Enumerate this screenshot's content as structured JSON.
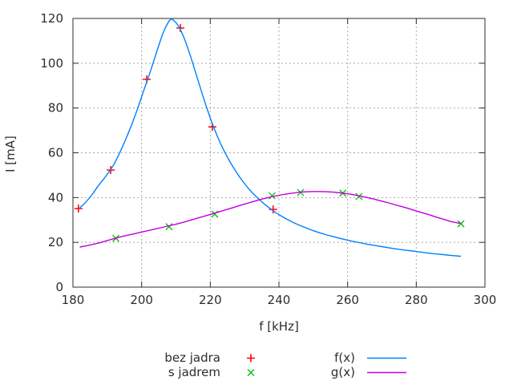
{
  "colors": {
    "background": "#ffffff",
    "axis": "#2d2d2d",
    "text": "#2d2d2d",
    "grid": "#a8a8a8"
  },
  "chart_data": {
    "type": "line",
    "title": "",
    "xlabel": "f [kHz]",
    "ylabel": "I [mA]",
    "xlim": [
      180,
      300
    ],
    "ylim": [
      0,
      120
    ],
    "xticks": [
      180,
      200,
      220,
      240,
      260,
      280,
      300
    ],
    "yticks": [
      0,
      20,
      40,
      60,
      80,
      100,
      120
    ],
    "grid": true,
    "legend_position": "below-plot, two columns",
    "series": [
      {
        "name": "bez jadra",
        "kind": "points",
        "marker": "plus",
        "color": "#ff0000",
        "data": [
          [
            181.6,
            35.1
          ],
          [
            191.0,
            52.3
          ],
          [
            201.5,
            92.8
          ],
          [
            211.3,
            115.7
          ],
          [
            220.6,
            71.6
          ],
          [
            238.3,
            34.7
          ]
        ]
      },
      {
        "name": "s jadrem",
        "kind": "points",
        "marker": "times",
        "color": "#00c000",
        "data": [
          [
            192.5,
            21.8
          ],
          [
            208.0,
            27.0
          ],
          [
            221.3,
            32.6
          ],
          [
            238.0,
            40.8
          ],
          [
            246.3,
            42.3
          ],
          [
            258.6,
            42.0
          ],
          [
            263.3,
            40.5
          ],
          [
            293.0,
            28.3
          ]
        ]
      },
      {
        "name": "f(x)",
        "kind": "line",
        "color": "#0080ff",
        "data": [
          [
            182,
            35.5
          ],
          [
            183,
            36.8
          ],
          [
            184,
            38.4
          ],
          [
            185,
            40.2
          ],
          [
            186,
            42.2
          ],
          [
            187,
            44.5
          ],
          [
            188,
            46.5
          ],
          [
            189,
            48.4
          ],
          [
            190,
            50.4
          ],
          [
            191,
            52.5
          ],
          [
            192,
            55
          ],
          [
            193,
            58
          ],
          [
            194,
            61.3
          ],
          [
            195,
            64.7
          ],
          [
            196,
            68.3
          ],
          [
            197,
            72.1
          ],
          [
            198,
            76.2
          ],
          [
            199,
            80.5
          ],
          [
            200,
            85
          ],
          [
            201,
            89.4
          ],
          [
            202,
            93.8
          ],
          [
            203,
            98.4
          ],
          [
            204,
            103.2
          ],
          [
            205,
            108
          ],
          [
            206,
            112.5
          ],
          [
            207,
            116.2
          ],
          [
            208,
            118.9
          ],
          [
            208.7,
            119.8
          ],
          [
            209,
            119.6
          ],
          [
            210,
            118.2
          ],
          [
            211,
            115.9
          ],
          [
            212,
            112.7
          ],
          [
            213,
            108.8
          ],
          [
            214,
            104.3
          ],
          [
            215,
            99.5
          ],
          [
            216,
            94.5
          ],
          [
            217,
            89.5
          ],
          [
            218,
            84.6
          ],
          [
            219,
            79.9
          ],
          [
            220,
            75.5
          ],
          [
            221,
            71.4
          ],
          [
            222,
            67.6
          ],
          [
            223,
            64.1
          ],
          [
            224,
            60.9
          ],
          [
            225,
            58
          ],
          [
            226,
            55.3
          ],
          [
            227,
            52.8
          ],
          [
            228,
            50.4
          ],
          [
            229,
            48.2
          ],
          [
            230,
            46.2
          ],
          [
            231,
            44.3
          ],
          [
            232,
            42.6
          ],
          [
            233,
            41
          ],
          [
            234,
            39.5
          ],
          [
            235,
            38.1
          ],
          [
            236,
            36.8
          ],
          [
            237,
            35.6
          ],
          [
            238,
            34.5
          ],
          [
            239,
            33.4
          ],
          [
            240,
            32.4
          ],
          [
            241,
            31.5
          ],
          [
            242,
            30.6
          ],
          [
            243,
            29.8
          ],
          [
            244,
            29
          ],
          [
            245,
            28.3
          ],
          [
            246,
            27.6
          ],
          [
            247,
            27
          ],
          [
            248,
            26.4
          ],
          [
            249,
            25.8
          ],
          [
            250,
            25.2
          ],
          [
            252,
            24.2
          ],
          [
            254,
            23.3
          ],
          [
            256,
            22.5
          ],
          [
            258,
            21.7
          ],
          [
            260,
            21
          ],
          [
            262,
            20.3
          ],
          [
            264,
            19.7
          ],
          [
            266,
            19.1
          ],
          [
            268,
            18.6
          ],
          [
            270,
            18.1
          ],
          [
            272,
            17.6
          ],
          [
            274,
            17.1
          ],
          [
            276,
            16.7
          ],
          [
            278,
            16.3
          ],
          [
            280,
            15.9
          ],
          [
            282,
            15.5
          ],
          [
            284,
            15.1
          ],
          [
            286,
            14.8
          ],
          [
            288,
            14.5
          ],
          [
            290,
            14.2
          ],
          [
            293,
            13.8
          ]
        ]
      },
      {
        "name": "g(x)",
        "kind": "line",
        "color": "#c000df",
        "data": [
          [
            182,
            17.9
          ],
          [
            184,
            18.5
          ],
          [
            186,
            19.2
          ],
          [
            188,
            19.9
          ],
          [
            190,
            20.8
          ],
          [
            192,
            21.7
          ],
          [
            194,
            22.5
          ],
          [
            196,
            23.2
          ],
          [
            198,
            23.9
          ],
          [
            200,
            24.6
          ],
          [
            202,
            25.3
          ],
          [
            204,
            26
          ],
          [
            206,
            26.7
          ],
          [
            208,
            27.4
          ],
          [
            210,
            28.1
          ],
          [
            212,
            28.9
          ],
          [
            214,
            29.8
          ],
          [
            216,
            30.7
          ],
          [
            218,
            31.6
          ],
          [
            220,
            32.5
          ],
          [
            222,
            33.4
          ],
          [
            224,
            34.3
          ],
          [
            226,
            35.2
          ],
          [
            228,
            36.2
          ],
          [
            230,
            37.1
          ],
          [
            232,
            38
          ],
          [
            234,
            38.9
          ],
          [
            236,
            39.7
          ],
          [
            238,
            40.4
          ],
          [
            240,
            41
          ],
          [
            242,
            41.6
          ],
          [
            244,
            42
          ],
          [
            246,
            42.4
          ],
          [
            248,
            42.6
          ],
          [
            250,
            42.7
          ],
          [
            252,
            42.7
          ],
          [
            254,
            42.6
          ],
          [
            256,
            42.4
          ],
          [
            258,
            42.1
          ],
          [
            260,
            41.7
          ],
          [
            262,
            41.2
          ],
          [
            264,
            40.6
          ],
          [
            266,
            39.9
          ],
          [
            268,
            39.2
          ],
          [
            270,
            38.4
          ],
          [
            272,
            37.6
          ],
          [
            274,
            36.7
          ],
          [
            276,
            35.9
          ],
          [
            278,
            35
          ],
          [
            280,
            34
          ],
          [
            282,
            33.1
          ],
          [
            284,
            32.2
          ],
          [
            286,
            31.2
          ],
          [
            288,
            30.3
          ],
          [
            290,
            29.3
          ],
          [
            293,
            28.4
          ]
        ]
      }
    ]
  }
}
